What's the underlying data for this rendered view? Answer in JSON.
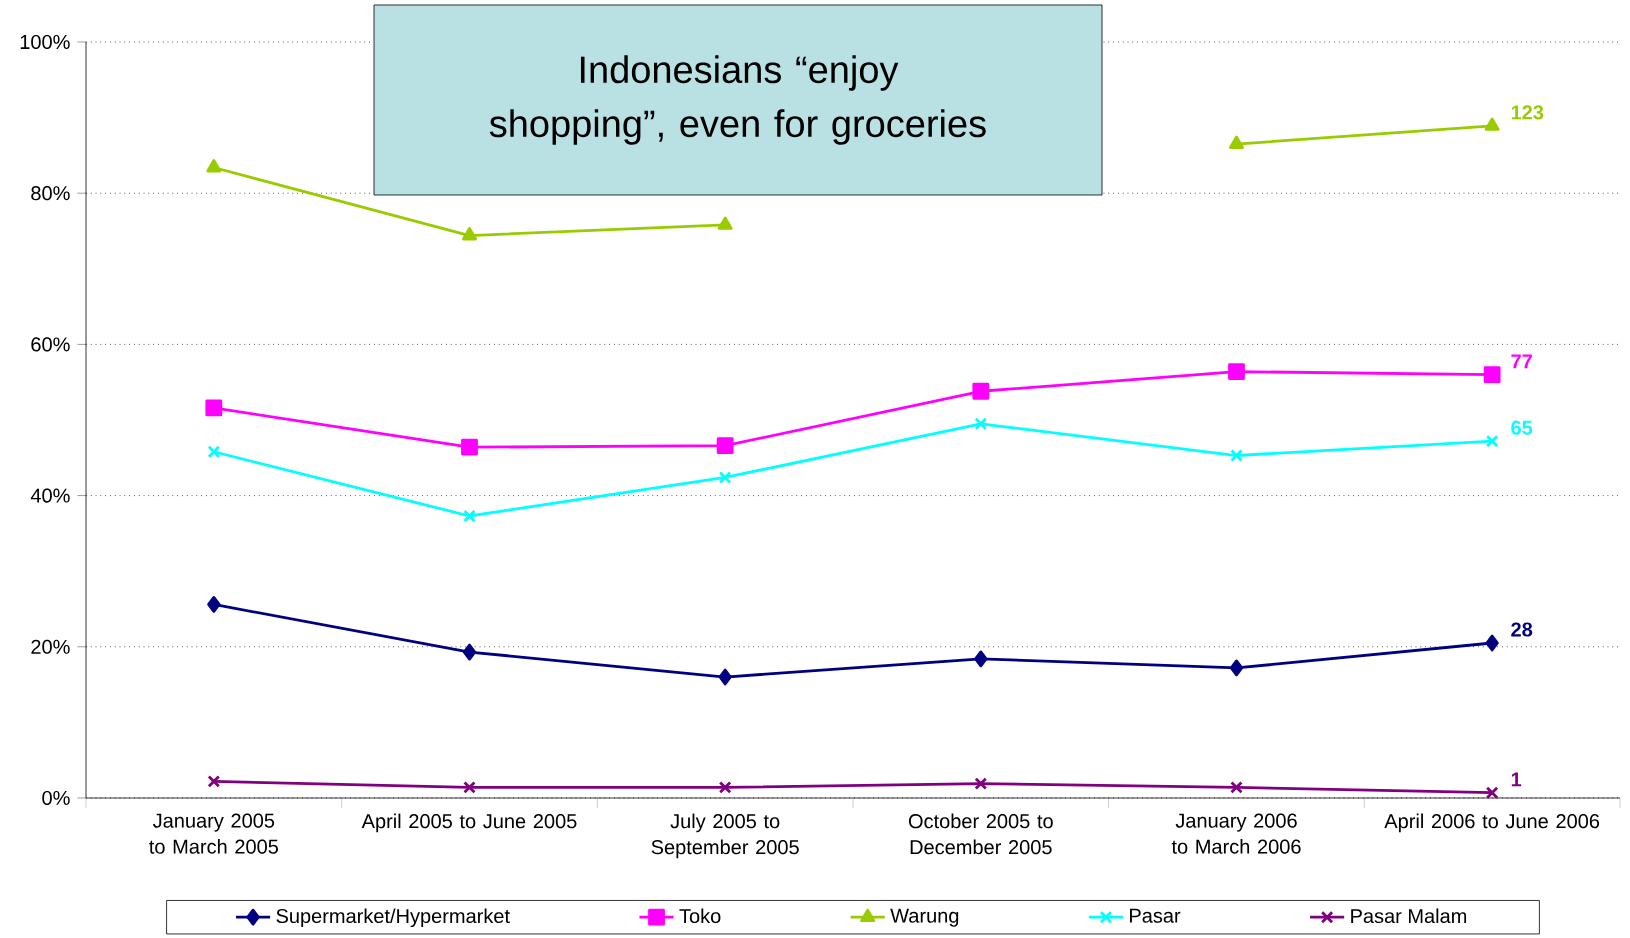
{
  "chart_data": {
    "type": "line",
    "title": "Indonesians “enjoy shopping”, even for groceries",
    "categories": [
      "January 2005 to March 2005",
      "April 2005 to June 2005",
      "July 2005 to September 2005",
      "October 2005 to December 2005",
      "January 2006 to March 2006",
      "April 2006 to June 2006"
    ],
    "series": [
      {
        "name": "Supermarket/Hypermarket",
        "color": "#000080",
        "marker": "diamond",
        "values": [
          25.6,
          19.3,
          16.0,
          18.4,
          17.2,
          20.5
        ]
      },
      {
        "name": "Toko",
        "color": "#ff00ff",
        "marker": "square",
        "values": [
          51.6,
          46.4,
          46.6,
          53.8,
          56.4,
          56.0
        ]
      },
      {
        "name": "Warung",
        "color": "#99cc00",
        "marker": "triangle",
        "values": [
          83.4,
          74.4,
          75.8,
          null,
          86.5,
          88.9
        ]
      },
      {
        "name": "Pasar",
        "color": "#00ffff",
        "marker": "cross",
        "values": [
          45.8,
          37.3,
          42.4,
          49.5,
          45.3,
          47.2
        ]
      },
      {
        "name": "Pasar Malam",
        "color": "#800080",
        "marker": "cross",
        "values": [
          2.2,
          1.4,
          1.4,
          1.9,
          1.4,
          0.7
        ]
      }
    ],
    "ylim": [
      0,
      100
    ],
    "yticks": [
      {
        "value": 0,
        "label": "0%"
      },
      {
        "value": 20,
        "label": "20%"
      },
      {
        "value": 40,
        "label": "40%"
      },
      {
        "value": 60,
        "label": "60%"
      },
      {
        "value": 80,
        "label": "80%"
      },
      {
        "value": 100,
        "label": "100%"
      }
    ],
    "grid": "y",
    "legend": "bottom",
    "line_style": "solid",
    "annotations": [
      {
        "text": "123",
        "x": "April 2006 to June 2006",
        "y": 88.9
      },
      {
        "text": "77",
        "x": "April 2006 to June 2006",
        "y": 56.0
      },
      {
        "text": "65",
        "x": "April 2006 to June 2006",
        "y": 47.2
      },
      {
        "text": "28",
        "x": "April 2006 to June 2006",
        "y": 20.5
      },
      {
        "text": "1",
        "x": "April 2006 to June 2006",
        "y": 0.7
      }
    ]
  }
}
